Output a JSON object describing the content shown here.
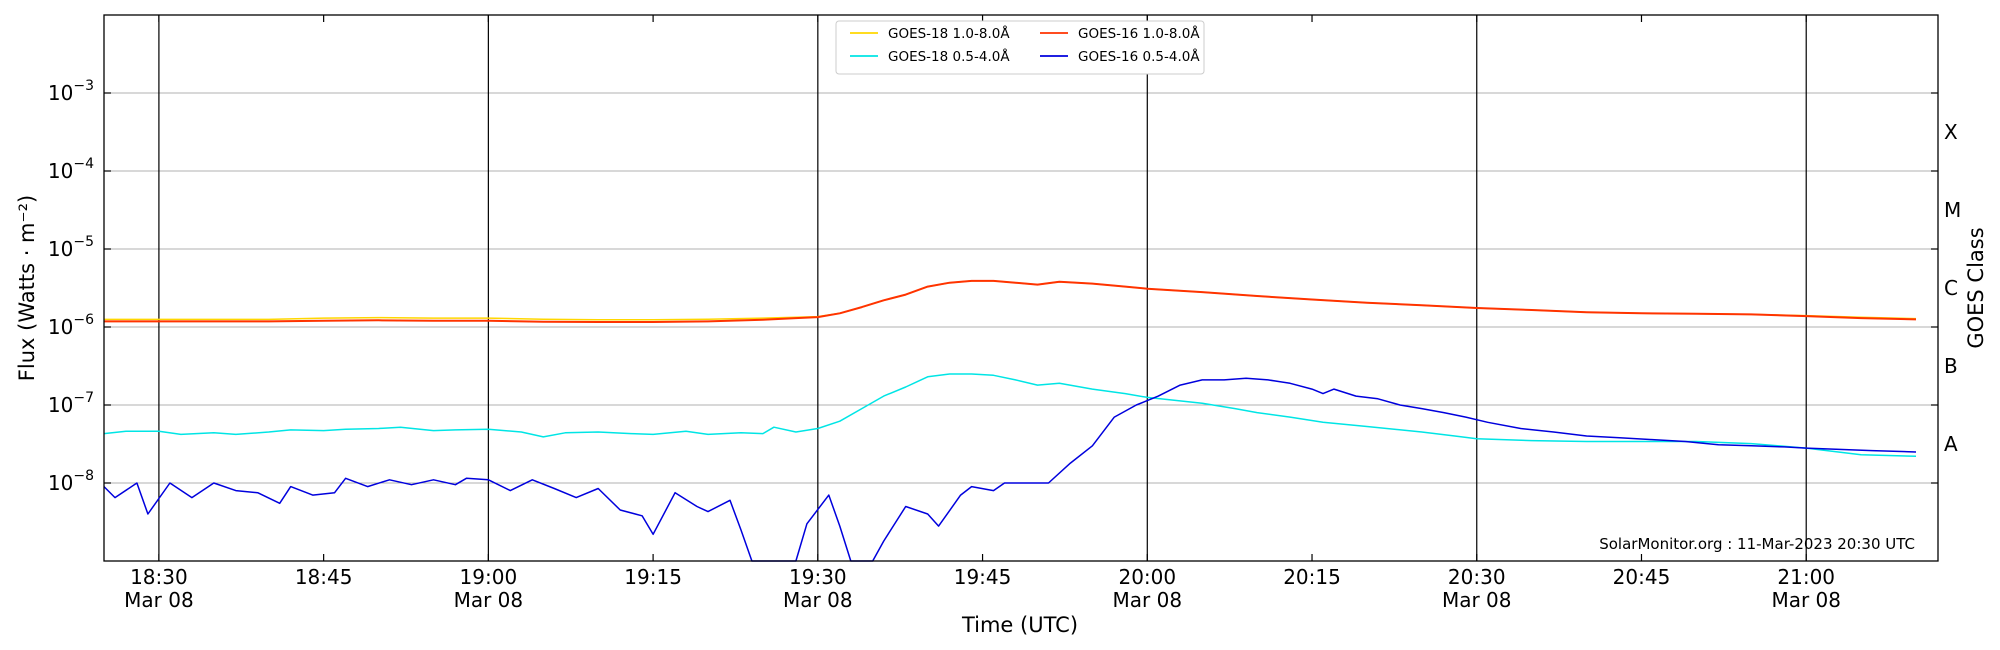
{
  "chart_data": {
    "type": "line",
    "y_scale": "log",
    "ylim": [
      1e-09,
      0.01
    ],
    "xlim": [
      "18:25",
      "21:12"
    ],
    "grid": "horizontal",
    "ylabel": "Flux (Watts · m⁻²)",
    "xlabel": "Time (UTC)",
    "right_label": "GOES Class",
    "credit": "SolarMonitor.org : 11-Mar-2023 20:30 UTC",
    "legend_position": "top-center",
    "y_ticks": [
      {
        "value": 1e-08,
        "base": "10",
        "exp": "−8"
      },
      {
        "value": 1e-07,
        "base": "10",
        "exp": "−7"
      },
      {
        "value": 1e-06,
        "base": "10",
        "exp": "−6"
      },
      {
        "value": 1e-05,
        "base": "10",
        "exp": "−5"
      },
      {
        "value": 0.0001,
        "base": "10",
        "exp": "−4"
      },
      {
        "value": 0.001,
        "base": "10",
        "exp": "−3"
      }
    ],
    "x_ticks": [
      {
        "time": "18:30",
        "label": "18:30",
        "sub": "Mar 08",
        "major": true
      },
      {
        "time": "18:45",
        "label": "18:45",
        "sub": "",
        "major": false
      },
      {
        "time": "19:00",
        "label": "19:00",
        "sub": "Mar 08",
        "major": true
      },
      {
        "time": "19:15",
        "label": "19:15",
        "sub": "",
        "major": false
      },
      {
        "time": "19:30",
        "label": "19:30",
        "sub": "Mar 08",
        "major": true
      },
      {
        "time": "19:45",
        "label": "19:45",
        "sub": "",
        "major": false
      },
      {
        "time": "20:00",
        "label": "20:00",
        "sub": "Mar 08",
        "major": true
      },
      {
        "time": "20:15",
        "label": "20:15",
        "sub": "",
        "major": false
      },
      {
        "time": "20:30",
        "label": "20:30",
        "sub": "Mar 08",
        "major": true
      },
      {
        "time": "20:45",
        "label": "20:45",
        "sub": "",
        "major": false
      },
      {
        "time": "21:00",
        "label": "21:00",
        "sub": "Mar 08",
        "major": true
      }
    ],
    "goes_classes": [
      {
        "label": "A",
        "low": 1e-08,
        "high": 1e-07
      },
      {
        "label": "B",
        "low": 1e-07,
        "high": 1e-06
      },
      {
        "label": "C",
        "low": 1e-06,
        "high": 1e-05
      },
      {
        "label": "M",
        "low": 1e-05,
        "high": 0.0001
      },
      {
        "label": "X",
        "low": 0.0001,
        "high": 0.001
      }
    ],
    "series": [
      {
        "name": "GOES-18 1.0-8.0Å",
        "color": "#ffd700",
        "points": [
          [
            "18:25",
            1.25e-06
          ],
          [
            "18:30",
            1.25e-06
          ],
          [
            "18:35",
            1.25e-06
          ],
          [
            "18:40",
            1.25e-06
          ],
          [
            "18:45",
            1.3e-06
          ],
          [
            "18:50",
            1.32e-06
          ],
          [
            "18:55",
            1.3e-06
          ],
          [
            "19:00",
            1.3e-06
          ],
          [
            "19:05",
            1.26e-06
          ],
          [
            "19:10",
            1.24e-06
          ],
          [
            "19:15",
            1.24e-06
          ],
          [
            "19:20",
            1.26e-06
          ],
          [
            "19:25",
            1.3e-06
          ],
          [
            "19:28",
            1.33e-06
          ],
          [
            "19:30",
            1.36e-06
          ],
          [
            "19:32",
            1.5e-06
          ],
          [
            "19:34",
            1.8e-06
          ],
          [
            "19:36",
            2.2e-06
          ],
          [
            "19:38",
            2.6e-06
          ],
          [
            "19:40",
            3.3e-06
          ],
          [
            "19:42",
            3.7e-06
          ],
          [
            "19:44",
            3.9e-06
          ],
          [
            "19:46",
            3.9e-06
          ],
          [
            "19:48",
            3.7e-06
          ],
          [
            "19:50",
            3.5e-06
          ],
          [
            "19:52",
            3.8e-06
          ],
          [
            "19:55",
            3.6e-06
          ],
          [
            "19:58",
            3.3e-06
          ],
          [
            "20:00",
            3.1e-06
          ],
          [
            "20:05",
            2.8e-06
          ],
          [
            "20:10",
            2.5e-06
          ],
          [
            "20:15",
            2.25e-06
          ],
          [
            "20:20",
            2.05e-06
          ],
          [
            "20:25",
            1.9e-06
          ],
          [
            "20:30",
            1.75e-06
          ],
          [
            "20:35",
            1.65e-06
          ],
          [
            "20:40",
            1.55e-06
          ],
          [
            "20:45",
            1.5e-06
          ],
          [
            "20:50",
            1.48e-06
          ],
          [
            "20:55",
            1.45e-06
          ],
          [
            "21:00",
            1.4e-06
          ],
          [
            "21:05",
            1.33e-06
          ],
          [
            "21:10",
            1.28e-06
          ]
        ]
      },
      {
        "name": "GOES-18 0.5-4.0Å",
        "color": "#00e5e5",
        "points": [
          [
            "18:25",
            4.3e-08
          ],
          [
            "18:27",
            4.6e-08
          ],
          [
            "18:30",
            4.6e-08
          ],
          [
            "18:32",
            4.2e-08
          ],
          [
            "18:35",
            4.4e-08
          ],
          [
            "18:37",
            4.2e-08
          ],
          [
            "18:40",
            4.5e-08
          ],
          [
            "18:42",
            4.8e-08
          ],
          [
            "18:45",
            4.7e-08
          ],
          [
            "18:47",
            4.9e-08
          ],
          [
            "18:50",
            5e-08
          ],
          [
            "18:52",
            5.2e-08
          ],
          [
            "18:55",
            4.7e-08
          ],
          [
            "18:57",
            4.8e-08
          ],
          [
            "19:00",
            4.9e-08
          ],
          [
            "19:03",
            4.5e-08
          ],
          [
            "19:05",
            3.9e-08
          ],
          [
            "19:07",
            4.4e-08
          ],
          [
            "19:10",
            4.5e-08
          ],
          [
            "19:13",
            4.3e-08
          ],
          [
            "19:15",
            4.2e-08
          ],
          [
            "19:18",
            4.6e-08
          ],
          [
            "19:20",
            4.2e-08
          ],
          [
            "19:23",
            4.4e-08
          ],
          [
            "19:25",
            4.3e-08
          ],
          [
            "19:26",
            5.2e-08
          ],
          [
            "19:28",
            4.5e-08
          ],
          [
            "19:30",
            5e-08
          ],
          [
            "19:32",
            6.2e-08
          ],
          [
            "19:34",
            9e-08
          ],
          [
            "19:36",
            1.3e-07
          ],
          [
            "19:38",
            1.7e-07
          ],
          [
            "19:40",
            2.3e-07
          ],
          [
            "19:42",
            2.5e-07
          ],
          [
            "19:44",
            2.5e-07
          ],
          [
            "19:46",
            2.4e-07
          ],
          [
            "19:48",
            2.1e-07
          ],
          [
            "19:50",
            1.8e-07
          ],
          [
            "19:52",
            1.9e-07
          ],
          [
            "19:55",
            1.6e-07
          ],
          [
            "19:58",
            1.4e-07
          ],
          [
            "20:00",
            1.25e-07
          ],
          [
            "20:05",
            1.05e-07
          ],
          [
            "20:08",
            9e-08
          ],
          [
            "20:10",
            8e-08
          ],
          [
            "20:13",
            7e-08
          ],
          [
            "20:16",
            6e-08
          ],
          [
            "20:20",
            5.3e-08
          ],
          [
            "20:25",
            4.5e-08
          ],
          [
            "20:28",
            4e-08
          ],
          [
            "20:30",
            3.7e-08
          ],
          [
            "20:35",
            3.5e-08
          ],
          [
            "20:40",
            3.4e-08
          ],
          [
            "20:45",
            3.4e-08
          ],
          [
            "20:50",
            3.4e-08
          ],
          [
            "20:55",
            3.2e-08
          ],
          [
            "21:00",
            2.8e-08
          ],
          [
            "21:05",
            2.3e-08
          ],
          [
            "21:10",
            2.2e-08
          ]
        ]
      },
      {
        "name": "GOES-16 1.0-8.0Å",
        "color": "#ff3300",
        "points": [
          [
            "18:25",
            1.18e-06
          ],
          [
            "18:30",
            1.18e-06
          ],
          [
            "18:35",
            1.18e-06
          ],
          [
            "18:40",
            1.18e-06
          ],
          [
            "18:45",
            1.2e-06
          ],
          [
            "18:50",
            1.22e-06
          ],
          [
            "18:55",
            1.2e-06
          ],
          [
            "19:00",
            1.2e-06
          ],
          [
            "19:05",
            1.17e-06
          ],
          [
            "19:10",
            1.16e-06
          ],
          [
            "19:15",
            1.16e-06
          ],
          [
            "19:20",
            1.18e-06
          ],
          [
            "19:25",
            1.24e-06
          ],
          [
            "19:28",
            1.3e-06
          ],
          [
            "19:30",
            1.34e-06
          ],
          [
            "19:32",
            1.5e-06
          ],
          [
            "19:34",
            1.8e-06
          ],
          [
            "19:36",
            2.2e-06
          ],
          [
            "19:38",
            2.6e-06
          ],
          [
            "19:40",
            3.3e-06
          ],
          [
            "19:42",
            3.7e-06
          ],
          [
            "19:44",
            3.9e-06
          ],
          [
            "19:46",
            3.9e-06
          ],
          [
            "19:48",
            3.7e-06
          ],
          [
            "19:50",
            3.5e-06
          ],
          [
            "19:52",
            3.8e-06
          ],
          [
            "19:55",
            3.6e-06
          ],
          [
            "19:58",
            3.3e-06
          ],
          [
            "20:00",
            3.1e-06
          ],
          [
            "20:05",
            2.8e-06
          ],
          [
            "20:10",
            2.5e-06
          ],
          [
            "20:15",
            2.25e-06
          ],
          [
            "20:20",
            2.05e-06
          ],
          [
            "20:25",
            1.9e-06
          ],
          [
            "20:30",
            1.75e-06
          ],
          [
            "20:35",
            1.65e-06
          ],
          [
            "20:40",
            1.55e-06
          ],
          [
            "20:45",
            1.5e-06
          ],
          [
            "20:50",
            1.48e-06
          ],
          [
            "20:55",
            1.45e-06
          ],
          [
            "21:00",
            1.38e-06
          ],
          [
            "21:05",
            1.3e-06
          ],
          [
            "21:10",
            1.25e-06
          ]
        ]
      },
      {
        "name": "GOES-16 0.5-4.0Å",
        "color": "#0000dd",
        "points": [
          [
            "18:25",
            9e-09
          ],
          [
            "18:26",
            6.5e-09
          ],
          [
            "18:28",
            1e-08
          ],
          [
            "18:29",
            4e-09
          ],
          [
            "18:31",
            1e-08
          ],
          [
            "18:33",
            6.5e-09
          ],
          [
            "18:35",
            1e-08
          ],
          [
            "18:37",
            8e-09
          ],
          [
            "18:39",
            7.5e-09
          ],
          [
            "18:41",
            5.5e-09
          ],
          [
            "18:42",
            9e-09
          ],
          [
            "18:44",
            7e-09
          ],
          [
            "18:46",
            7.5e-09
          ],
          [
            "18:47",
            1.15e-08
          ],
          [
            "18:49",
            9e-09
          ],
          [
            "18:51",
            1.1e-08
          ],
          [
            "18:53",
            9.5e-09
          ],
          [
            "18:55",
            1.1e-08
          ],
          [
            "18:57",
            9.5e-09
          ],
          [
            "18:58",
            1.15e-08
          ],
          [
            "19:00",
            1.1e-08
          ],
          [
            "19:02",
            8e-09
          ],
          [
            "19:04",
            1.1e-08
          ],
          [
            "19:06",
            8.5e-09
          ],
          [
            "19:08",
            6.5e-09
          ],
          [
            "19:10",
            8.5e-09
          ],
          [
            "19:12",
            4.5e-09
          ],
          [
            "19:14",
            3.8e-09
          ],
          [
            "19:15",
            2.2e-09
          ],
          [
            "19:17",
            7.5e-09
          ],
          [
            "19:19",
            5e-09
          ],
          [
            "19:20",
            4.3e-09
          ],
          [
            "19:22",
            6e-09
          ],
          [
            "19:23",
            2.5e-09
          ],
          [
            "19:24",
            8e-10
          ],
          [
            "19:26",
            8e-10
          ],
          [
            "19:28",
            8e-10
          ],
          [
            "19:29",
            3e-09
          ],
          [
            "19:31",
            7e-09
          ],
          [
            "19:32",
            2.8e-09
          ],
          [
            "19:33",
            8e-10
          ],
          [
            "19:35",
            8e-10
          ],
          [
            "19:36",
            1.8e-09
          ],
          [
            "19:38",
            5e-09
          ],
          [
            "19:40",
            4e-09
          ],
          [
            "19:41",
            2.8e-09
          ],
          [
            "19:43",
            7e-09
          ],
          [
            "19:44",
            9e-09
          ],
          [
            "19:46",
            8e-09
          ],
          [
            "19:47",
            1e-08
          ],
          [
            "19:49",
            1e-08
          ],
          [
            "19:51",
            1e-08
          ],
          [
            "19:53",
            1.8e-08
          ],
          [
            "19:55",
            3e-08
          ],
          [
            "19:57",
            7e-08
          ],
          [
            "19:59",
            1e-07
          ],
          [
            "20:01",
            1.3e-07
          ],
          [
            "20:03",
            1.8e-07
          ],
          [
            "20:05",
            2.1e-07
          ],
          [
            "20:07",
            2.1e-07
          ],
          [
            "20:09",
            2.2e-07
          ],
          [
            "20:11",
            2.1e-07
          ],
          [
            "20:13",
            1.9e-07
          ],
          [
            "20:15",
            1.6e-07
          ],
          [
            "20:16",
            1.4e-07
          ],
          [
            "20:17",
            1.6e-07
          ],
          [
            "20:19",
            1.3e-07
          ],
          [
            "20:21",
            1.2e-07
          ],
          [
            "20:23",
            1e-07
          ],
          [
            "20:25",
            9e-08
          ],
          [
            "20:27",
            8e-08
          ],
          [
            "20:29",
            7e-08
          ],
          [
            "20:31",
            6e-08
          ],
          [
            "20:34",
            5e-08
          ],
          [
            "20:37",
            4.5e-08
          ],
          [
            "20:40",
            4e-08
          ],
          [
            "20:43",
            3.8e-08
          ],
          [
            "20:46",
            3.6e-08
          ],
          [
            "20:49",
            3.4e-08
          ],
          [
            "20:52",
            3.1e-08
          ],
          [
            "20:55",
            3e-08
          ],
          [
            "20:58",
            2.9e-08
          ],
          [
            "21:00",
            2.8e-08
          ],
          [
            "21:03",
            2.7e-08
          ],
          [
            "21:06",
            2.6e-08
          ],
          [
            "21:10",
            2.5e-08
          ]
        ]
      }
    ]
  }
}
